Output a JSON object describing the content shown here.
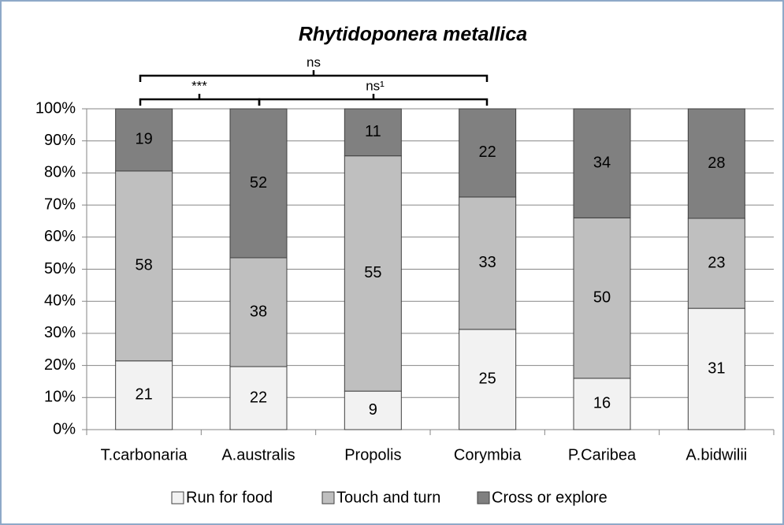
{
  "chart_data": {
    "type": "bar",
    "stack": "percent",
    "title": "Rhytidoponera metallica",
    "categories": [
      "T.carbonaria",
      "A.australis",
      "Propolis",
      "Corymbia",
      "P.Caribea",
      "A.bidwilii"
    ],
    "series": [
      {
        "name": "Run for food",
        "color": "#f2f2f2",
        "values": [
          21,
          22,
          9,
          25,
          16,
          31
        ]
      },
      {
        "name": "Touch and turn",
        "color": "#bfbfbf",
        "values": [
          58,
          38,
          55,
          33,
          50,
          23
        ]
      },
      {
        "name": "Cross or explore",
        "color": "#808080",
        "values": [
          19,
          52,
          11,
          22,
          34,
          28
        ]
      }
    ],
    "ylim": [
      0,
      100
    ],
    "yticks": [
      {
        "value": 0,
        "label": "0%"
      },
      {
        "value": 10,
        "label": "10%"
      },
      {
        "value": 20,
        "label": "20%"
      },
      {
        "value": 30,
        "label": "30%"
      },
      {
        "value": 40,
        "label": "40%"
      },
      {
        "value": 50,
        "label": "50%"
      },
      {
        "value": 60,
        "label": "60%"
      },
      {
        "value": 70,
        "label": "70%"
      },
      {
        "value": 80,
        "label": "80%"
      },
      {
        "value": 90,
        "label": "90%"
      },
      {
        "value": 100,
        "label": "100%"
      }
    ],
    "grid": true,
    "legend": "bottom",
    "annotations": [
      "***",
      "ns¹",
      "ns"
    ]
  }
}
